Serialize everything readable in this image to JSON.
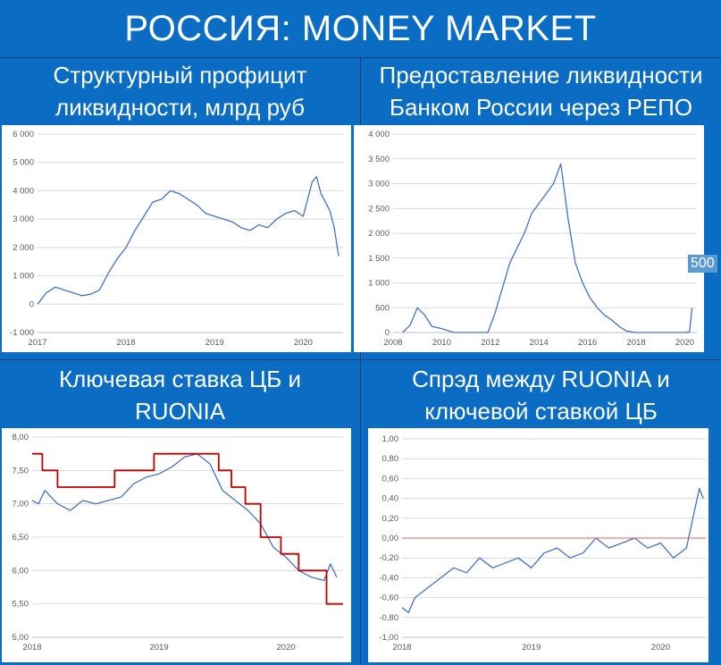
{
  "header": {
    "title": "РОССИЯ: MONEY MARKET"
  },
  "panels": [
    {
      "title_line1": "Структурный профицит",
      "title_line2": "ликвидности, млрд руб"
    },
    {
      "title_line1": "Предоставление ликвидности",
      "title_line2": "Банком России через РЕПО"
    },
    {
      "title_line1": "Ключевая ставка ЦБ и",
      "title_line2": "RUONIA"
    },
    {
      "title_line1": "Спрэд между RUONIA и",
      "title_line2": "ключевой ставкой ЦБ"
    }
  ],
  "colors": {
    "background": "#0a6cc2",
    "line": "#4472c4",
    "key_rate": "#c00000",
    "zero_line": "#e06060",
    "badge": "#5b9bd5"
  },
  "chart_data": [
    {
      "type": "line",
      "title": "",
      "xlim": [
        2017,
        2020.45
      ],
      "ylim": [
        -1000,
        6000
      ],
      "xticks": [
        "2017",
        "2018",
        "2019",
        "2020"
      ],
      "yticks": [
        "6 000",
        "5 000",
        "4 000",
        "3 000",
        "2 000",
        "1 000",
        "0",
        "-1 000"
      ],
      "series": [
        {
          "x": [
            2017.0,
            2017.1,
            2017.2,
            2017.35,
            2017.5,
            2017.6,
            2017.7,
            2017.8,
            2017.9,
            2018.0,
            2018.1,
            2018.2,
            2018.3,
            2018.4,
            2018.5,
            2018.6,
            2018.7,
            2018.8,
            2018.9,
            2019.0,
            2019.1,
            2019.2,
            2019.3,
            2019.4,
            2019.5,
            2019.6,
            2019.7,
            2019.8,
            2019.9,
            2020.0,
            2020.05,
            2020.1,
            2020.15,
            2020.2,
            2020.25,
            2020.3,
            2020.35,
            2020.4
          ],
          "y": [
            0,
            400,
            600,
            450,
            300,
            350,
            500,
            1100,
            1600,
            2000,
            2600,
            3100,
            3600,
            3700,
            4000,
            3900,
            3700,
            3500,
            3200,
            3100,
            3000,
            2900,
            2700,
            2600,
            2800,
            2700,
            3000,
            3200,
            3300,
            3100,
            3700,
            4300,
            4500,
            3900,
            3600,
            3300,
            2700,
            1700
          ]
        }
      ]
    },
    {
      "type": "line",
      "title": "",
      "xlim": [
        2008,
        2020.5
      ],
      "ylim": [
        0,
        4000
      ],
      "xticks": [
        "2008",
        "2010",
        "2012",
        "2014",
        "2016",
        "2018",
        "2020"
      ],
      "yticks": [
        "4 000",
        "3 500",
        "3 000",
        "2 500",
        "2 000",
        "1 500",
        "1 000",
        "500",
        "0"
      ],
      "annotation": "500",
      "series": [
        {
          "x": [
            2008.4,
            2008.7,
            2009.0,
            2009.3,
            2009.6,
            2010.0,
            2010.5,
            2011.0,
            2011.5,
            2011.9,
            2012.2,
            2012.5,
            2012.8,
            2013.1,
            2013.4,
            2013.7,
            2014.0,
            2014.3,
            2014.6,
            2014.9,
            2015.2,
            2015.5,
            2015.8,
            2016.1,
            2016.4,
            2016.7,
            2017.0,
            2017.3,
            2017.6,
            2018.0,
            2018.5,
            2019.0,
            2019.5,
            2020.0,
            2020.2,
            2020.3
          ],
          "y": [
            0,
            150,
            500,
            350,
            120,
            80,
            0,
            0,
            0,
            0,
            400,
            900,
            1400,
            1700,
            2000,
            2400,
            2600,
            2800,
            3000,
            3400,
            2300,
            1400,
            1000,
            700,
            500,
            350,
            250,
            120,
            30,
            0,
            0,
            0,
            0,
            0,
            10,
            500
          ]
        }
      ]
    },
    {
      "type": "line",
      "title": "",
      "xlim": [
        2018,
        2020.45
      ],
      "ylim": [
        5.0,
        8.0
      ],
      "xticks": [
        "2018",
        "2019",
        "2020"
      ],
      "yticks": [
        "8,00",
        "7,50",
        "7,00",
        "6,50",
        "6,00",
        "5,50",
        "5,00"
      ],
      "series": [
        {
          "x": [
            2018.0,
            2018.05,
            2018.1,
            2018.15,
            2018.2,
            2018.3,
            2018.4,
            2018.5,
            2018.6,
            2018.7,
            2018.8,
            2018.9,
            2019.0,
            2019.1,
            2019.2,
            2019.3,
            2019.4,
            2019.5,
            2019.6,
            2019.7,
            2019.8,
            2019.9,
            2020.0,
            2020.1,
            2020.2,
            2020.3,
            2020.35,
            2020.4
          ],
          "y": [
            7.05,
            7.0,
            7.2,
            7.1,
            7.0,
            6.9,
            7.05,
            7.0,
            7.05,
            7.1,
            7.3,
            7.4,
            7.45,
            7.55,
            7.7,
            7.75,
            7.6,
            7.2,
            7.05,
            6.9,
            6.7,
            6.35,
            6.2,
            6.0,
            5.9,
            5.85,
            6.1,
            5.9
          ]
        },
        {
          "x": [
            2018.0,
            2018.08,
            2018.08,
            2018.2,
            2018.2,
            2018.65,
            2018.65,
            2018.96,
            2018.96,
            2019.47,
            2019.47,
            2019.57,
            2019.57,
            2019.68,
            2019.68,
            2019.8,
            2019.8,
            2019.96,
            2019.96,
            2020.1,
            2020.1,
            2020.32,
            2020.32,
            2020.41,
            2020.41,
            2020.45
          ],
          "y": [
            7.75,
            7.75,
            7.5,
            7.5,
            7.25,
            7.25,
            7.5,
            7.5,
            7.75,
            7.75,
            7.5,
            7.5,
            7.25,
            7.25,
            7.0,
            7.0,
            6.5,
            6.5,
            6.25,
            6.25,
            6.0,
            6.0,
            5.5,
            5.5,
            5.5,
            5.5
          ]
        }
      ]
    },
    {
      "type": "line",
      "title": "",
      "xlim": [
        2018,
        2020.35
      ],
      "ylim": [
        -1.0,
        1.0
      ],
      "xticks": [
        "2018",
        "2019",
        "2020"
      ],
      "yticks": [
        "1,00",
        "0,80",
        "0,60",
        "0,40",
        "0,20",
        "0,00",
        "-0,20",
        "-0,40",
        "-0,60",
        "-0,80",
        "-1,00"
      ],
      "series": [
        {
          "x": [
            2018.0,
            2018.05,
            2018.1,
            2018.2,
            2018.3,
            2018.4,
            2018.5,
            2018.6,
            2018.7,
            2018.8,
            2018.9,
            2019.0,
            2019.1,
            2019.2,
            2019.3,
            2019.4,
            2019.5,
            2019.6,
            2019.7,
            2019.8,
            2019.9,
            2020.0,
            2020.1,
            2020.2,
            2020.25,
            2020.3,
            2020.33
          ],
          "y": [
            -0.7,
            -0.75,
            -0.6,
            -0.5,
            -0.4,
            -0.3,
            -0.35,
            -0.2,
            -0.3,
            -0.25,
            -0.2,
            -0.3,
            -0.15,
            -0.1,
            -0.2,
            -0.15,
            0.0,
            -0.1,
            -0.05,
            0.0,
            -0.1,
            -0.05,
            -0.2,
            -0.1,
            0.2,
            0.5,
            0.4
          ]
        },
        {
          "x": [
            2018.0,
            2020.35
          ],
          "y": [
            0,
            0
          ]
        }
      ]
    }
  ]
}
